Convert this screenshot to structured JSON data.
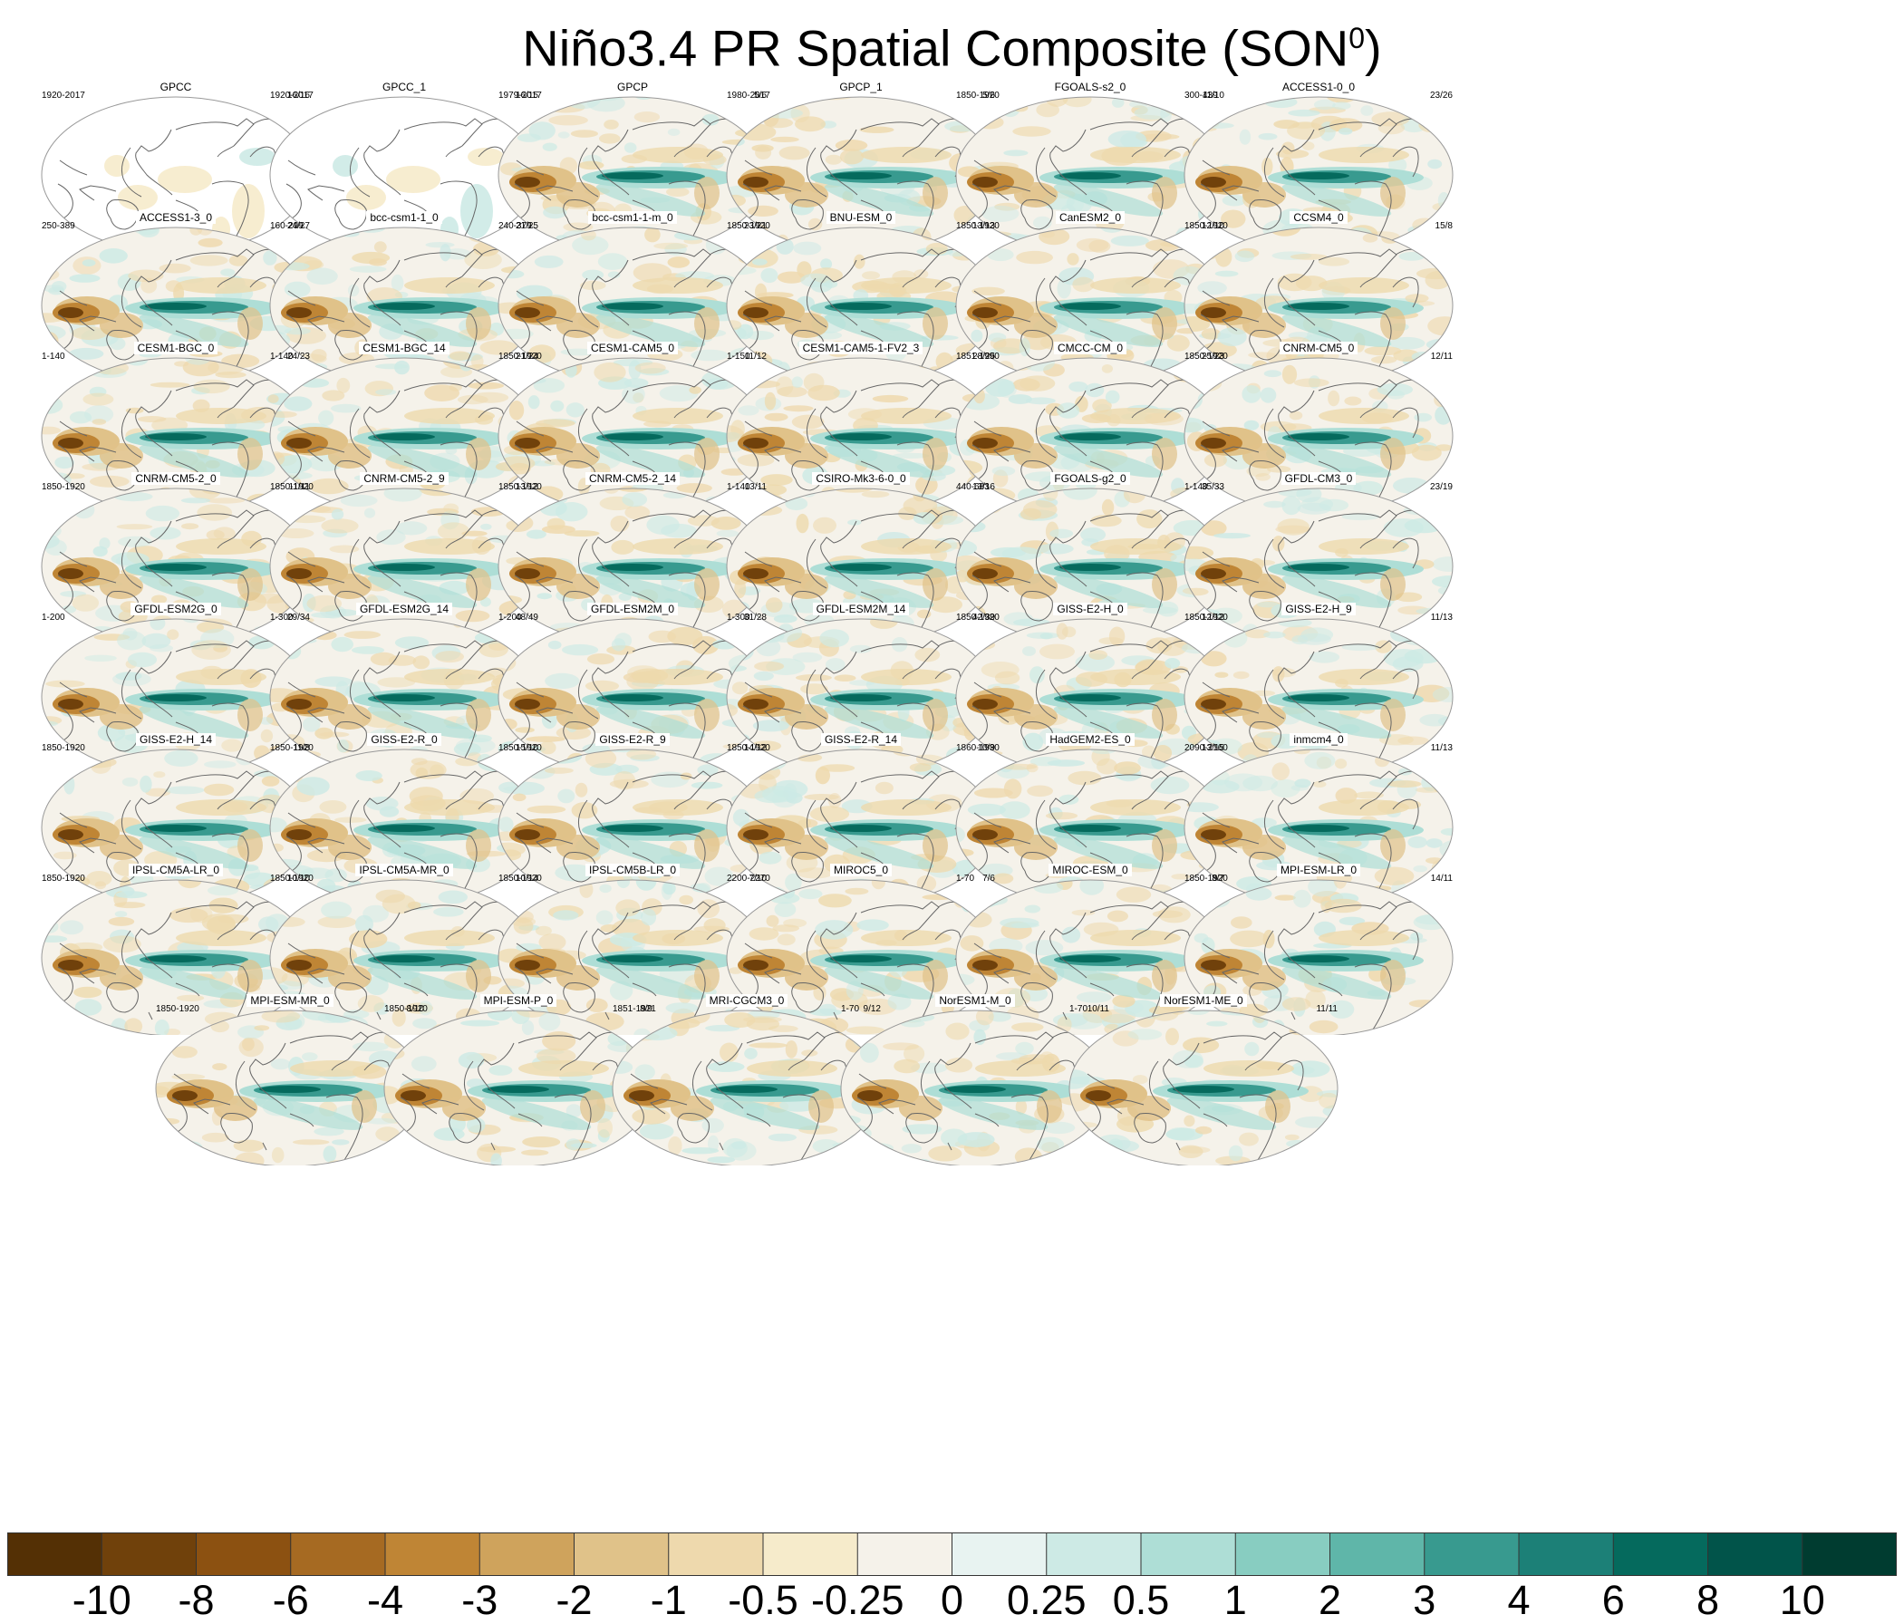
{
  "title": {
    "main": "Niño3.4 PR Spatial Composite (SON",
    "sup": "0",
    "close": ")"
  },
  "panels": [
    {
      "name": "GPCC",
      "period": "1920-2017",
      "ratio": "16/16",
      "kind": "land"
    },
    {
      "name": "GPCC_1",
      "period": "1920-2017",
      "ratio": "16/15",
      "kind": "land"
    },
    {
      "name": "GPCP",
      "period": "1979-2017",
      "ratio": "5/6",
      "kind": "obs"
    },
    {
      "name": "GPCP_1",
      "period": "1980-2017",
      "ratio": "5/6",
      "kind": "obs"
    },
    {
      "name": "FGOALS-s2_0",
      "period": "1850-1920",
      "ratio": "11/10",
      "kind": "model"
    },
    {
      "name": "ACCESS1-0_0",
      "period": "300-439",
      "ratio": "23/26",
      "kind": "model"
    },
    {
      "name": "ACCESS1-3_0",
      "period": "250-389",
      "ratio": "24/27",
      "kind": "model"
    },
    {
      "name": "bcc-csm1-1_0",
      "period": "160-299",
      "ratio": "21/25",
      "kind": "model"
    },
    {
      "name": "bcc-csm1-1-m_0",
      "period": "240-379",
      "ratio": "23/21",
      "kind": "model"
    },
    {
      "name": "BNU-ESM_0",
      "period": "1850-1920",
      "ratio": "13/13",
      "kind": "model"
    },
    {
      "name": "CanESM2_0",
      "period": "1850-1920",
      "ratio": "12/10",
      "kind": "model"
    },
    {
      "name": "CCSM4_0",
      "period": "1850-1920",
      "ratio": "15/8",
      "kind": "model"
    },
    {
      "name": "CESM1-BGC_0",
      "period": "1-140",
      "ratio": "24/23",
      "kind": "model"
    },
    {
      "name": "CESM1-BGC_14",
      "period": "1-140",
      "ratio": "21/24",
      "kind": "model"
    },
    {
      "name": "CESM1-CAM5_0",
      "period": "1850-1920",
      "ratio": "11/12",
      "kind": "model"
    },
    {
      "name": "CESM1-CAM5-1-FV2_3",
      "period": "1-150",
      "ratio": "28/25",
      "kind": "model"
    },
    {
      "name": "CMCC-CM_0",
      "period": "1851-1990",
      "ratio": "25/23",
      "kind": "model"
    },
    {
      "name": "CNRM-CM5_0",
      "period": "1850-1920",
      "ratio": "12/11",
      "kind": "model"
    },
    {
      "name": "CNRM-CM5-2_0",
      "period": "1850-1920",
      "ratio": "11/11",
      "kind": "model"
    },
    {
      "name": "CNRM-CM5-2_9",
      "period": "1850-1920",
      "ratio": "13/12",
      "kind": "model"
    },
    {
      "name": "CNRM-CM5-2_14",
      "period": "1850-1920",
      "ratio": "13/11",
      "kind": "model"
    },
    {
      "name": "CSIRO-Mk3-6-0_0",
      "period": "1-140",
      "ratio": "13/16",
      "kind": "model"
    },
    {
      "name": "FGOALS-g2_0",
      "period": "440-683",
      "ratio": "35/33",
      "kind": "model"
    },
    {
      "name": "GFDL-CM3_0",
      "period": "1-140",
      "ratio": "23/19",
      "kind": "model"
    },
    {
      "name": "GFDL-ESM2G_0",
      "period": "1-200",
      "ratio": "29/34",
      "kind": "model"
    },
    {
      "name": "GFDL-ESM2G_14",
      "period": "1-300",
      "ratio": "48/49",
      "kind": "model"
    },
    {
      "name": "GFDL-ESM2M_0",
      "period": "1-200",
      "ratio": "31/28",
      "kind": "model"
    },
    {
      "name": "GFDL-ESM2M_14",
      "period": "1-300",
      "ratio": "42/39",
      "kind": "model"
    },
    {
      "name": "GISS-E2-H_0",
      "period": "1850-1920",
      "ratio": "12/12",
      "kind": "model"
    },
    {
      "name": "GISS-E2-H_9",
      "period": "1850-1920",
      "ratio": "11/13",
      "kind": "model"
    },
    {
      "name": "GISS-E2-H_14",
      "period": "1850-1920",
      "ratio": "11/8",
      "kind": "model"
    },
    {
      "name": "GISS-E2-R_0",
      "period": "1850-1920",
      "ratio": "15/10",
      "kind": "model"
    },
    {
      "name": "GISS-E2-R_9",
      "period": "1850-1920",
      "ratio": "14/12",
      "kind": "model"
    },
    {
      "name": "GISS-E2-R_14",
      "period": "1850-1920",
      "ratio": "10/9",
      "kind": "model"
    },
    {
      "name": "HadGEM2-ES_0",
      "period": "1860-1930",
      "ratio": "13/15",
      "kind": "model"
    },
    {
      "name": "inmcm4_0",
      "period": "2090-2160",
      "ratio": "11/13",
      "kind": "model"
    },
    {
      "name": "IPSL-CM5A-LR_0",
      "period": "1850-1920",
      "ratio": "10/10",
      "kind": "model"
    },
    {
      "name": "IPSL-CM5A-MR_0",
      "period": "1850-1920",
      "ratio": "10/14",
      "kind": "model"
    },
    {
      "name": "IPSL-CM5B-LR_0",
      "period": "1850-1920",
      "ratio": "7/10",
      "kind": "model"
    },
    {
      "name": "MIROC5_0",
      "period": "2200-2270",
      "ratio": "7/6",
      "kind": "model"
    },
    {
      "name": "MIROC-ESM_0",
      "period": "1-70",
      "ratio": "8/7",
      "kind": "model"
    },
    {
      "name": "MPI-ESM-LR_0",
      "period": "1850-1920",
      "ratio": "14/11",
      "kind": "model"
    },
    {
      "name": "MPI-ESM-MR_0",
      "period": "1850-1920",
      "ratio": "8/10",
      "kind": "model"
    },
    {
      "name": "MPI-ESM-P_0",
      "period": "1850-1920",
      "ratio": "8/9",
      "kind": "model"
    },
    {
      "name": "MRI-CGCM3_0",
      "period": "1851-1921",
      "ratio": "9/12",
      "kind": "model"
    },
    {
      "name": "NorESM1-M_0",
      "period": "1-70",
      "ratio": "10/11",
      "kind": "model"
    },
    {
      "name": "NorESM1-ME_0",
      "period": "1-70",
      "ratio": "11/11",
      "kind": "model"
    }
  ],
  "colorbar": {
    "labels": [
      "-10",
      "-8",
      "-6",
      "-4",
      "-3",
      "-2",
      "-1",
      "-0.5",
      "-0.25",
      "0",
      "0.25",
      "0.5",
      "1",
      "2",
      "3",
      "4",
      "6",
      "8",
      "10"
    ],
    "colors": [
      "#543005",
      "#70410b",
      "#8c5111",
      "#a66a22",
      "#bf8535",
      "#cfa35c",
      "#e0c289",
      "#eed9ad",
      "#f6ebcb",
      "#f5f2ea",
      "#e8f3f1",
      "#cdeae5",
      "#aeded6",
      "#88cdc1",
      "#5fb6a9",
      "#389a8f",
      "#1c8077",
      "#056a5d",
      "#01544a",
      "#003c30"
    ]
  }
}
